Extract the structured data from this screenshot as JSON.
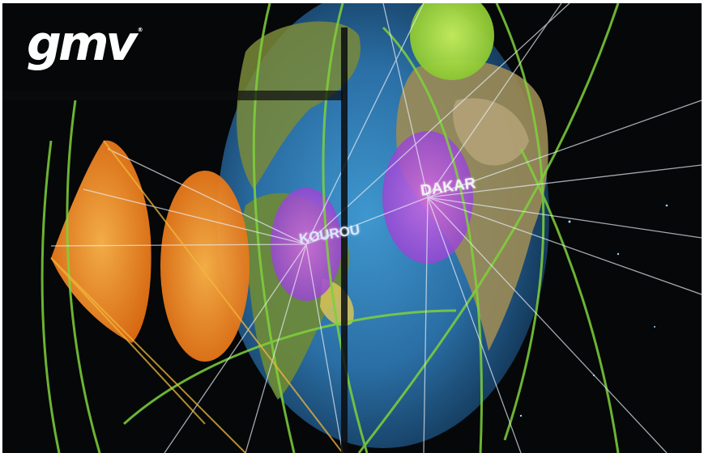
{
  "brand": {
    "logo_text": "gmv",
    "registered_mark": "®"
  },
  "map_labels": {
    "dakar": "DAKAR",
    "kourou": "KOUROU"
  },
  "colors": {
    "background": "#050708",
    "ocean": "#2e7fb8",
    "land": "#8a7a3c",
    "ground_track": "#7fd13b",
    "coverage_orange": "#f08a1c",
    "station_purple": "#b050d8"
  }
}
